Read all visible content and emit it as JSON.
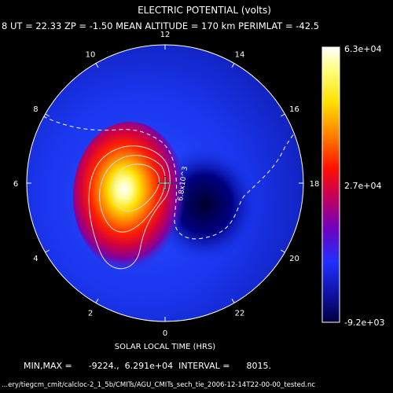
{
  "chart_data": {
    "type": "heatmap",
    "title": "ELECTRIC POTENTIAL (volts)",
    "subtitle": "8  UT = 22.33  ZP =  -1.50  MEAN ALTITUDE = 170 km  PERIMLAT = -42.5",
    "xlabel": "SOLAR LOCAL TIME (HRS)",
    "local_time_labels": [
      "12",
      "14",
      "16",
      "18",
      "20",
      "22",
      "0",
      "2",
      "4",
      "6",
      "8",
      "10"
    ],
    "local_time_hours": [
      12,
      14,
      16,
      18,
      20,
      22,
      0,
      2,
      4,
      6,
      8,
      10
    ],
    "colorbar": {
      "labels": [
        "6.3e+04",
        "2.7e+04",
        "-9.2e+03"
      ],
      "min": -9224,
      "max": 62910
    },
    "contour_label": "6.8x10^3",
    "min_max_text": "MIN,MAX =      -9224.,  6.291e+04  INTERVAL =      8015.",
    "footer_path": "...ery/tiegcm_cmit/calcloc-2_1_5b/CMITs/AGU_CMITs_sech_tie_2006-12-14T22-00-00_tested.nc",
    "colors": {
      "background": "#000000",
      "low": "#00007a",
      "field": "#1a2fe0",
      "mid": "#c000a0",
      "high": "#ff2000",
      "peak": "#ffffe0"
    }
  }
}
